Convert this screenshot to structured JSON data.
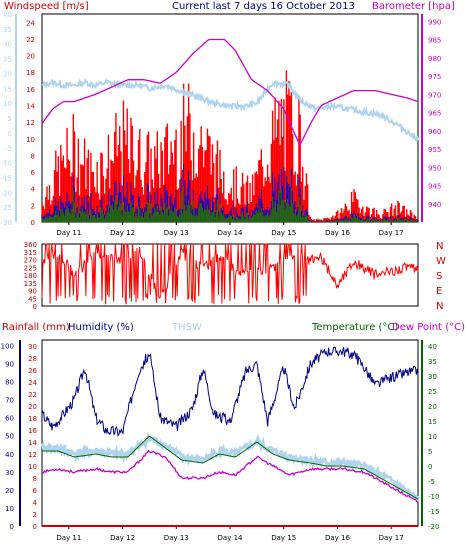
{
  "header": {
    "windspeed_label": "Windspeed [m/s]",
    "title": "Current last 7 days 16 October 2013",
    "barometer_label": "Barometer [hpa]"
  },
  "lower_header": {
    "rainfall_label": "Rainfall (mm)",
    "humidity_label": "Humidity (%)",
    "thsw_label": "THSW",
    "temperature_label": "Temperature (°C)",
    "dewpoint_label": "Dew Point (°C)"
  },
  "colors": {
    "wind": "#ff0000",
    "gust_blue": "#0000cc",
    "green": "#008000",
    "barometer": "#cc00cc",
    "thsw": "#b0d4ee",
    "humidity": "#000080",
    "rain_axis": "#cc0000",
    "temperature": "#006600",
    "dewpoint": "#cc00cc"
  },
  "chart_data": [
    {
      "type": "area",
      "panel": "wind-barometer",
      "x_labels": [
        "Day 11",
        "Day 12",
        "Day 13",
        "Day 14",
        "Day 15",
        "Day 16",
        "Day 17"
      ],
      "left_axis": {
        "label": "Windspeed [m/s]",
        "ticks": [
          0,
          2,
          4,
          6,
          8,
          10,
          12,
          14,
          16,
          18,
          20,
          22,
          24
        ]
      },
      "left_axis_2": {
        "ticks": [
          -30,
          -25,
          -20,
          -15,
          -10,
          -5,
          0,
          5,
          10,
          15,
          20,
          25,
          30,
          35,
          40
        ]
      },
      "right_axis": {
        "label": "Barometer [hpa]",
        "ticks": [
          940,
          945,
          950,
          955,
          960,
          965,
          970,
          975,
          980,
          985,
          990
        ]
      },
      "series": [
        {
          "name": "Barometer [hpa]",
          "x": [
            0,
            0.2,
            0.4,
            0.6,
            0.8,
            1.0,
            1.3,
            1.6,
            1.9,
            2.2,
            2.5,
            2.8,
            3.1,
            3.4,
            3.6,
            3.9,
            4.2,
            4.5,
            4.8,
            5.0,
            5.2,
            5.5,
            5.8,
            6.0,
            6.2,
            6.5,
            6.8,
            7.0
          ],
          "values": [
            962,
            966,
            968,
            968,
            969,
            970,
            972,
            974,
            974,
            973,
            976,
            981,
            985,
            985,
            982,
            974,
            971,
            966,
            956,
            962,
            967,
            969,
            971,
            971,
            971,
            970,
            969,
            968
          ]
        },
        {
          "name": "THSW",
          "x": [
            0,
            0.2,
            0.4,
            0.6,
            0.8,
            1.0,
            1.2,
            1.5,
            1.8,
            2.0,
            2.3,
            2.6,
            2.9,
            3.2,
            3.5,
            3.8,
            4.0,
            4.3,
            4.6,
            4.8,
            5.1,
            5.4,
            5.7,
            6.0,
            6.3,
            6.6,
            6.9,
            7.0
          ],
          "values": [
            16,
            17,
            16,
            16,
            17,
            16,
            17,
            16,
            16,
            15,
            16,
            14,
            12,
            10,
            9,
            9,
            10,
            17,
            16,
            11,
            8,
            9,
            8,
            7,
            6,
            3,
            -1,
            -2
          ]
        },
        {
          "name": "Windspeed",
          "x": [
            0,
            0.3,
            0.6,
            0.9,
            1.2,
            1.5,
            1.8,
            2.1,
            2.4,
            2.7,
            3.0,
            3.3,
            3.6,
            3.9,
            4.2,
            4.5,
            4.8,
            5.0,
            5.2,
            5.5,
            5.8,
            6.0,
            6.3,
            6.6,
            6.9,
            7.0
          ],
          "values": [
            3,
            7,
            10,
            7,
            8,
            11,
            9,
            8,
            10,
            13,
            11,
            7,
            5,
            4,
            10,
            14,
            12,
            0.3,
            0.3,
            1,
            3,
            2,
            1,
            2,
            1,
            1
          ]
        }
      ]
    },
    {
      "type": "scatter",
      "panel": "wind-direction",
      "x_labels": [
        "Day 11",
        "Day 12",
        "Day 13",
        "Day 14",
        "Day 15",
        "Day 16",
        "Day 17"
      ],
      "y_ticks": [
        0,
        45,
        90,
        135,
        180,
        225,
        270,
        315,
        360
      ],
      "right_labels": [
        "N",
        "W",
        "S",
        "E",
        "N"
      ],
      "series": [
        {
          "name": "Direction",
          "x": [
            0,
            0.3,
            0.6,
            1.0,
            1.4,
            1.8,
            2.2,
            2.6,
            3.0,
            3.4,
            3.6,
            3.9,
            4.2,
            4.6,
            4.9,
            5.2,
            5.5,
            5.8,
            6.2,
            6.5,
            6.8,
            7.0
          ],
          "values": [
            250,
            320,
            180,
            300,
            260,
            330,
            40,
            300,
            220,
            300,
            190,
            190,
            200,
            300,
            260,
            280,
            120,
            260,
            180,
            200,
            230,
            200
          ]
        }
      ]
    },
    {
      "type": "line",
      "panel": "temperature-humidity",
      "x_labels": [
        "Day 11",
        "Day 12",
        "Day 13",
        "Day 14",
        "Day 15",
        "Day 16",
        "Day 17"
      ],
      "left_axis_rain": {
        "label": "Rainfall (mm)",
        "ticks": [
          0,
          2,
          4,
          6,
          8,
          10,
          12,
          14,
          16,
          18,
          20,
          22,
          24,
          26,
          28,
          30
        ]
      },
      "left_axis_humidity": {
        "label": "Humidity (%)",
        "ticks": [
          0,
          10,
          20,
          30,
          40,
          50,
          60,
          70,
          80,
          90,
          100
        ]
      },
      "right_axis": {
        "label": "Temperature (°C)",
        "ticks": [
          -20,
          -15,
          -10,
          -5,
          0,
          5,
          10,
          15,
          20,
          25,
          30,
          35,
          40
        ]
      },
      "series": [
        {
          "name": "Humidity (%)",
          "x": [
            0,
            0.2,
            0.4,
            0.6,
            0.8,
            1.0,
            1.2,
            1.5,
            1.8,
            2.0,
            2.2,
            2.5,
            2.8,
            3.0,
            3.2,
            3.5,
            3.8,
            4.0,
            4.2,
            4.5,
            4.7,
            5.0,
            5.3,
            5.6,
            5.8,
            6.0,
            6.2,
            6.5,
            6.8,
            7.0
          ],
          "values": [
            62,
            55,
            62,
            70,
            88,
            60,
            53,
            52,
            86,
            96,
            60,
            55,
            65,
            88,
            62,
            58,
            86,
            90,
            58,
            88,
            65,
            90,
            97,
            97,
            95,
            88,
            78,
            82,
            85,
            86
          ]
        },
        {
          "name": "THSW",
          "x": [
            0,
            0.3,
            0.6,
            1.0,
            1.3,
            1.6,
            2.0,
            2.3,
            2.6,
            3.0,
            3.3,
            3.6,
            4.0,
            4.3,
            4.6,
            5.0,
            5.3,
            5.6,
            6.0,
            6.3,
            6.6,
            6.9,
            7.0
          ],
          "values": [
            6,
            6,
            4,
            5,
            4,
            4,
            9,
            7,
            3,
            2,
            5,
            4,
            8,
            5,
            3,
            2,
            1,
            1,
            0,
            -3,
            -6,
            -10,
            -11
          ]
        },
        {
          "name": "Temperature (°C)",
          "x": [
            0,
            0.3,
            0.6,
            1.0,
            1.3,
            1.6,
            2.0,
            2.3,
            2.6,
            3.0,
            3.3,
            3.6,
            4.0,
            4.3,
            4.6,
            5.0,
            5.3,
            5.6,
            6.0,
            6.3,
            6.6,
            6.9,
            7.0
          ],
          "values": [
            5,
            5,
            3,
            4,
            3,
            3,
            10,
            6,
            2,
            1,
            4,
            3,
            8,
            4,
            2,
            1,
            0,
            0,
            -1,
            -4,
            -7,
            -10,
            -11
          ]
        },
        {
          "name": "Dew Point (°C)",
          "x": [
            0,
            0.3,
            0.6,
            1.0,
            1.3,
            1.6,
            2.0,
            2.3,
            2.6,
            3.0,
            3.3,
            3.6,
            4.0,
            4.3,
            4.6,
            5.0,
            5.3,
            5.6,
            6.0,
            6.3,
            6.6,
            6.9,
            7.0
          ],
          "values": [
            -2,
            -1,
            -2,
            -1,
            -2,
            -2,
            5,
            3,
            -4,
            -4,
            -2,
            -3,
            3,
            0,
            -3,
            -1,
            -1,
            -1,
            -2,
            -5,
            -8,
            -11,
            -12
          ]
        },
        {
          "name": "Rainfall (mm)",
          "x": [
            0,
            7
          ],
          "values": [
            0,
            0
          ]
        }
      ]
    }
  ]
}
